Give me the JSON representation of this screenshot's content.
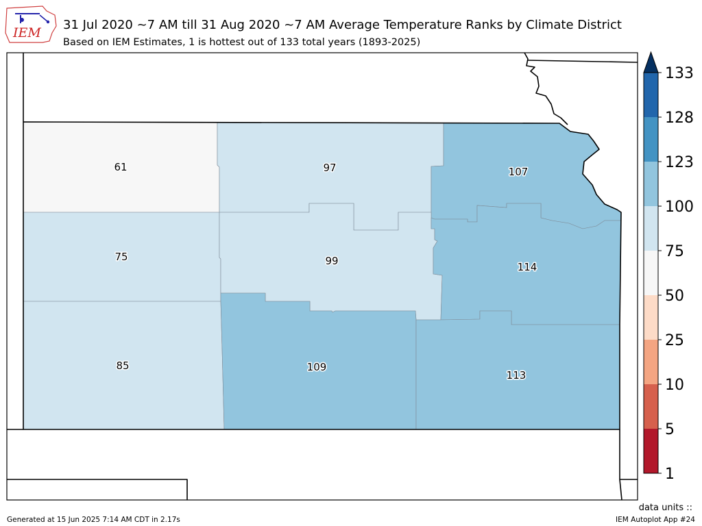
{
  "header": {
    "title": "31 Jul 2020 ~7 AM till 31 Aug 2020 ~7 AM Average Temperature Ranks by Climate District",
    "subtitle": "Based on IEM Estimates, 1 is hottest out of 133 total years (1893-2025)"
  },
  "logo": {
    "text": "IEM"
  },
  "footer": {
    "generated": "Generated at 15 Jun 2025 7:14 AM CDT in 2.17s",
    "app": "IEM Autoplot App #24",
    "units": "data units ::"
  },
  "colors": {
    "bins": [
      "#b2182b",
      "#d6604d",
      "#f4a582",
      "#fddbc7",
      "#f7f7f7",
      "#d1e5f0",
      "#92c5de",
      "#4393c3",
      "#2166ac",
      "#053061"
    ]
  },
  "chart_data": {
    "type": "map",
    "districts": [
      {
        "id": "northwest",
        "rank": 61
      },
      {
        "id": "north-central",
        "rank": 97
      },
      {
        "id": "northeast",
        "rank": 107
      },
      {
        "id": "west-central",
        "rank": 75
      },
      {
        "id": "central",
        "rank": 99
      },
      {
        "id": "east-central",
        "rank": 114
      },
      {
        "id": "southwest",
        "rank": 85
      },
      {
        "id": "south-central",
        "rank": 109
      },
      {
        "id": "southeast",
        "rank": 113
      }
    ],
    "colorbar": {
      "ticks": [
        "1",
        "5",
        "10",
        "25",
        "50",
        "75",
        "100",
        "123",
        "128",
        "133"
      ],
      "bounds": [
        1,
        5,
        10,
        25,
        50,
        75,
        100,
        123,
        128,
        133
      ],
      "extend": "max"
    }
  }
}
